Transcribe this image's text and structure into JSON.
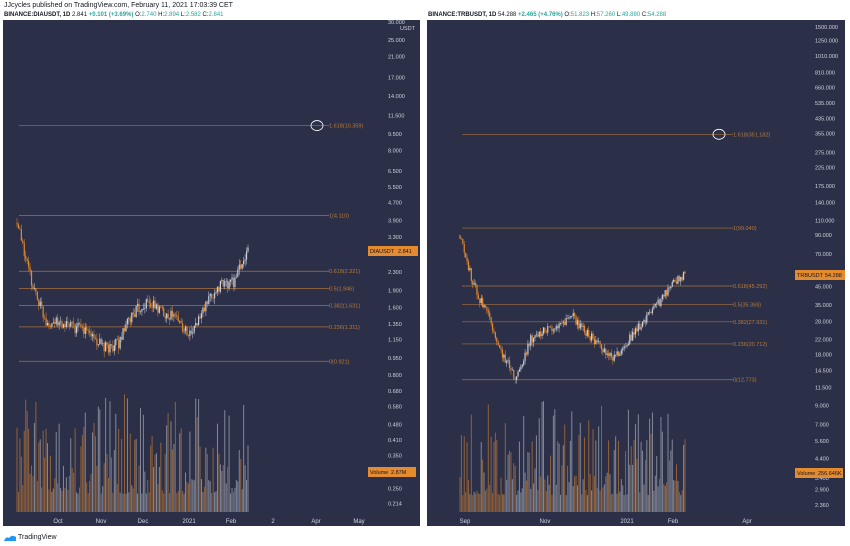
{
  "header": {
    "text": "JJcycles published on TradingView.com, February 11, 2021 17:03:39 CET"
  },
  "footer": {
    "brand": "TradingView"
  },
  "colors": {
    "bg": "#2b3048",
    "fib": "#b8793a",
    "candle_up": "#c8cfdb",
    "candle_down": "#e48a2f",
    "volume_label_bg": "#e48a2f"
  },
  "panels": [
    {
      "symbol_line": "BINANCE:DIAUSDT, 1D",
      "price_text": "2.841",
      "change_text": "+0.101 (+3.69%)",
      "ohlc": {
        "o_label": "O:",
        "o": "2.740",
        "h_label": "H:",
        "h": "2.894",
        "l_label": "L:",
        "l": "2.582",
        "c_label": "C:",
        "c": "2.841"
      },
      "axis_unit": "USDT",
      "y_ticks": [
        "30.000",
        "25.000",
        "21.000",
        "17.000",
        "14.000",
        "11.500",
        "9.500",
        "8.000",
        "6.500",
        "5.500",
        "4.700",
        "3.900",
        "3.300",
        "2.300",
        "1.900",
        "1.600",
        "1.350",
        "1.150",
        "0.950",
        "0.800",
        "0.680",
        "0.580",
        "0.480",
        "0.410",
        "0.350",
        "0.290",
        "0.250",
        "0.214"
      ],
      "x_ticks": [
        "Oct",
        "Nov",
        "Dec",
        "2021",
        "Feb",
        "2",
        "Apr",
        "May"
      ],
      "price_tag": {
        "label": "DIAUSDT",
        "value": "2.841"
      },
      "volume_tag": {
        "label": "Volume",
        "value": "2.87M"
      },
      "fib_levels": [
        {
          "label": "1.618(10.359)",
          "price": 10.359
        },
        {
          "label": "1(4.110)",
          "price": 4.11
        },
        {
          "label": "0.618(2.321)",
          "price": 2.321
        },
        {
          "label": "0.5(1.946)",
          "price": 1.946
        },
        {
          "label": "0.382(1.631)",
          "price": 1.631
        },
        {
          "label": "0.236(1.311)",
          "price": 1.311
        },
        {
          "label": "0(0.921)",
          "price": 0.921
        }
      ]
    },
    {
      "symbol_line": "BINANCE:TRBUSDT, 1D",
      "price_text": "54.288",
      "change_text": "+2.465 (+4.76%)",
      "ohlc": {
        "o_label": "O:",
        "o": "51.823",
        "h_label": "H:",
        "h": "57.260",
        "l_label": "L:",
        "l": "49.880",
        "c_label": "C:",
        "c": "54.288"
      },
      "axis_unit": "",
      "y_ticks": [
        "1500.000",
        "1250.000",
        "1010.000",
        "810.000",
        "660.000",
        "535.000",
        "435.000",
        "355.000",
        "275.000",
        "225.000",
        "175.000",
        "140.000",
        "110.000",
        "90.000",
        "70.000",
        "45.000",
        "35.000",
        "28.000",
        "22.000",
        "18.000",
        "14.500",
        "11.500",
        "9.000",
        "7.000",
        "5.600",
        "4.400",
        "3.400",
        "2.900",
        "2.360"
      ],
      "x_ticks": [
        "Sep",
        "Nov",
        "2021",
        "Feb",
        "Apr"
      ],
      "price_tag": {
        "label": "TRBUSDT",
        "value": "54.288"
      },
      "volume_tag": {
        "label": "Volume",
        "value": "256.646K"
      },
      "fib_levels": [
        {
          "label": "1.618(351.182)",
          "price": 351.182
        },
        {
          "label": "1(99.040)",
          "price": 99.04
        },
        {
          "label": "0.618(45.292)",
          "price": 45.292
        },
        {
          "label": "0.5(35.368)",
          "price": 35.368
        },
        {
          "label": "0.382(27.931)",
          "price": 27.931
        },
        {
          "label": "0.236(20.712)",
          "price": 20.712
        },
        {
          "label": "0(12.773)",
          "price": 12.773
        }
      ]
    }
  ],
  "chart_data": [
    {
      "type": "candlestick",
      "title": "BINANCE:DIAUSDT, 1D",
      "scale": "log",
      "ylim": [
        0.2,
        30
      ],
      "close_path": [
        {
          "x": "Sep 1",
          "close": 3.8
        },
        {
          "x": "Sep 10",
          "close": 2.1
        },
        {
          "x": "Sep 20",
          "close": 1.4
        },
        {
          "x": "Oct 1",
          "close": 1.35
        },
        {
          "x": "Oct 10",
          "close": 1.3
        },
        {
          "x": "Oct 20",
          "close": 1.25
        },
        {
          "x": "Nov 1",
          "close": 1.05
        },
        {
          "x": "Nov 15",
          "close": 1.1
        },
        {
          "x": "Nov 25",
          "close": 1.5
        },
        {
          "x": "Dec 5",
          "close": 1.7
        },
        {
          "x": "Dec 15",
          "close": 1.55
        },
        {
          "x": "Dec 25",
          "close": 1.45
        },
        {
          "x": "Jan 5",
          "close": 1.2
        },
        {
          "x": "Jan 15",
          "close": 1.6
        },
        {
          "x": "Jan 25",
          "close": 2.0
        },
        {
          "x": "Feb 5",
          "close": 2.1
        },
        {
          "x": "Feb 11",
          "close": 2.841
        }
      ]
    },
    {
      "type": "candlestick",
      "title": "BINANCE:TRBUSDT, 1D",
      "scale": "log",
      "ylim": [
        2.2,
        1600
      ],
      "close_path": [
        {
          "x": "Sep 1",
          "close": 90
        },
        {
          "x": "Sep 10",
          "close": 45
        },
        {
          "x": "Sep 20",
          "close": 30
        },
        {
          "x": "Oct 1",
          "close": 18
        },
        {
          "x": "Oct 10",
          "close": 13
        },
        {
          "x": "Oct 20",
          "close": 22
        },
        {
          "x": "Nov 1",
          "close": 25
        },
        {
          "x": "Nov 15",
          "close": 27
        },
        {
          "x": "Nov 25",
          "close": 30
        },
        {
          "x": "Dec 5",
          "close": 24
        },
        {
          "x": "Dec 15",
          "close": 20
        },
        {
          "x": "Dec 25",
          "close": 17
        },
        {
          "x": "Jan 5",
          "close": 22
        },
        {
          "x": "Jan 15",
          "close": 28
        },
        {
          "x": "Jan 25",
          "close": 35
        },
        {
          "x": "Feb 5",
          "close": 45
        },
        {
          "x": "Feb 11",
          "close": 54.288
        }
      ]
    }
  ]
}
